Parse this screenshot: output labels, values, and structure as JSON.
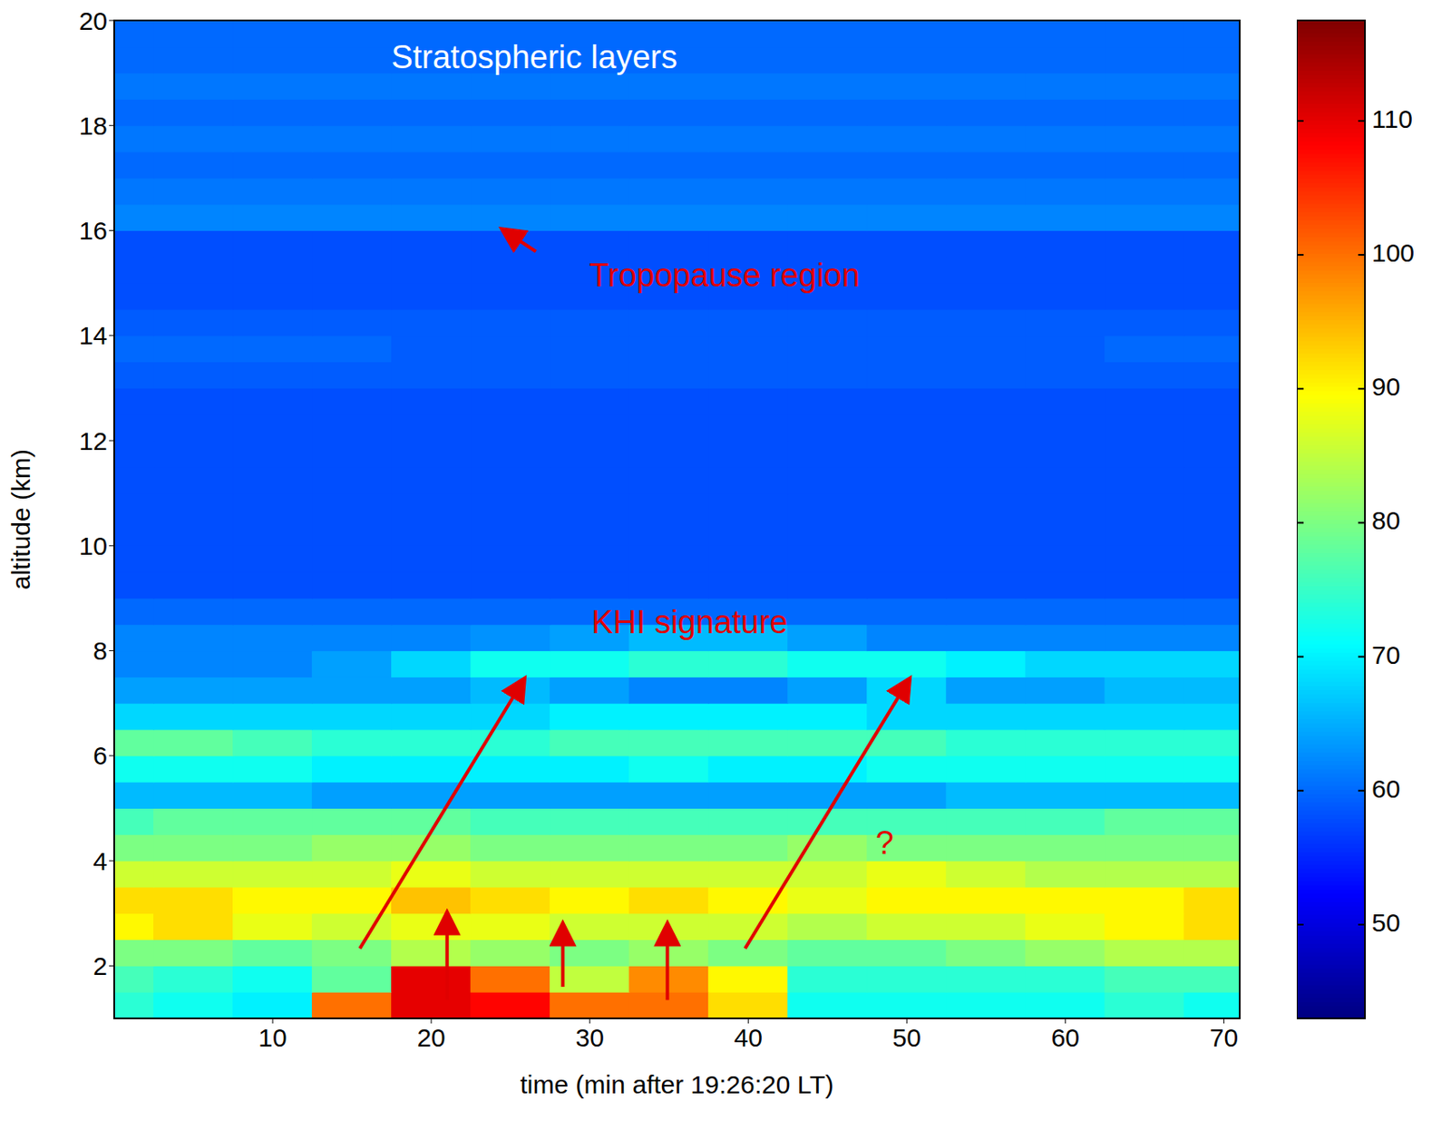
{
  "chart_data": {
    "type": "heatmap",
    "x_label": "time (min after 19:26:20 LT)",
    "y_label": "altitude (km)",
    "xlim": [
      0,
      71
    ],
    "xticks": [
      10,
      20,
      30,
      40,
      50,
      60,
      70
    ],
    "ylim": [
      1,
      20
    ],
    "yticks": [
      2,
      4,
      6,
      8,
      10,
      12,
      14,
      16,
      18,
      20
    ],
    "x": [
      0,
      5,
      10,
      15,
      20,
      25,
      30,
      35,
      40,
      45,
      50,
      55,
      60,
      65,
      70
    ],
    "y": [
      1.25,
      1.75,
      2.25,
      2.75,
      3.25,
      3.75,
      4.25,
      4.75,
      5.25,
      5.75,
      6.25,
      6.75,
      7.25,
      7.75,
      8.25,
      8.75,
      9.25,
      9.75,
      10.25,
      10.75,
      11.25,
      11.75,
      12.25,
      12.75,
      13.25,
      13.75,
      14.25,
      14.75,
      15.25,
      15.75,
      16.25,
      16.75,
      17.25,
      17.75,
      18.25,
      18.75,
      19.25,
      19.75
    ],
    "cells": [
      [
        74,
        72,
        70,
        100,
        110,
        108,
        100,
        100,
        92,
        72,
        72,
        72,
        72,
        74,
        72
      ],
      [
        76,
        74,
        72,
        78,
        110,
        100,
        85,
        98,
        90,
        74,
        74,
        74,
        74,
        76,
        76
      ],
      [
        80,
        80,
        78,
        80,
        84,
        82,
        80,
        82,
        80,
        78,
        78,
        80,
        82,
        84,
        84
      ],
      [
        90,
        92,
        88,
        86,
        88,
        88,
        86,
        86,
        86,
        84,
        86,
        86,
        88,
        90,
        92
      ],
      [
        92,
        92,
        90,
        90,
        94,
        92,
        90,
        92,
        90,
        88,
        90,
        90,
        90,
        90,
        92
      ],
      [
        86,
        86,
        86,
        86,
        88,
        86,
        86,
        86,
        86,
        86,
        88,
        86,
        84,
        84,
        84
      ],
      [
        80,
        80,
        80,
        82,
        82,
        80,
        80,
        80,
        80,
        82,
        80,
        80,
        80,
        80,
        80
      ],
      [
        76,
        78,
        78,
        78,
        78,
        76,
        76,
        76,
        76,
        76,
        76,
        76,
        76,
        78,
        78
      ],
      [
        66,
        66,
        66,
        64,
        64,
        64,
        64,
        64,
        64,
        64,
        64,
        66,
        66,
        66,
        66
      ],
      [
        72,
        72,
        72,
        70,
        70,
        70,
        70,
        72,
        70,
        70,
        72,
        72,
        72,
        72,
        72
      ],
      [
        78,
        78,
        76,
        74,
        74,
        74,
        76,
        76,
        76,
        76,
        76,
        74,
        74,
        74,
        74
      ],
      [
        68,
        68,
        68,
        68,
        68,
        68,
        70,
        70,
        70,
        70,
        68,
        68,
        68,
        68,
        68
      ],
      [
        64,
        64,
        64,
        64,
        64,
        66,
        64,
        62,
        62,
        64,
        68,
        64,
        64,
        66,
        66
      ],
      [
        62,
        62,
        62,
        64,
        68,
        72,
        72,
        74,
        74,
        72,
        72,
        70,
        68,
        68,
        68
      ],
      [
        62,
        62,
        62,
        62,
        62,
        63,
        64,
        66,
        66,
        64,
        62,
        62,
        62,
        62,
        62
      ],
      [
        60,
        60,
        60,
        60,
        60,
        60,
        60,
        60,
        60,
        60,
        60,
        60,
        60,
        60,
        60
      ],
      [
        58,
        58,
        58,
        58,
        58,
        58,
        58,
        58,
        58,
        58,
        58,
        58,
        58,
        58,
        58
      ],
      [
        58,
        58,
        58,
        58,
        58,
        58,
        58,
        58,
        58,
        58,
        58,
        58,
        58,
        58,
        58
      ],
      [
        58,
        58,
        58,
        58,
        58,
        58,
        58,
        58,
        58,
        58,
        58,
        58,
        58,
        58,
        58
      ],
      [
        58,
        58,
        58,
        58,
        58,
        58,
        58,
        58,
        58,
        58,
        58,
        58,
        58,
        58,
        58
      ],
      [
        58,
        58,
        58,
        58,
        58,
        58,
        58,
        58,
        58,
        58,
        58,
        58,
        58,
        58,
        58
      ],
      [
        58,
        58,
        58,
        58,
        58,
        58,
        58,
        58,
        58,
        58,
        58,
        58,
        58,
        58,
        58
      ],
      [
        58,
        58,
        58,
        58,
        58,
        58,
        58,
        58,
        58,
        58,
        58,
        58,
        58,
        58,
        58
      ],
      [
        58,
        58,
        58,
        58,
        58,
        58,
        58,
        58,
        58,
        58,
        58,
        58,
        58,
        58,
        58
      ],
      [
        59,
        59,
        59,
        59,
        59,
        59,
        59,
        59,
        59,
        59,
        59,
        59,
        59,
        59,
        59
      ],
      [
        60,
        60,
        60,
        60,
        59,
        59,
        59,
        59,
        59,
        59,
        59,
        59,
        59,
        60,
        60
      ],
      [
        59,
        59,
        59,
        59,
        59,
        59,
        59,
        59,
        59,
        59,
        59,
        59,
        59,
        59,
        59
      ],
      [
        58,
        58,
        58,
        58,
        58,
        58,
        58,
        58,
        58,
        58,
        58,
        58,
        58,
        58,
        58
      ],
      [
        58,
        58,
        58,
        58,
        58,
        58,
        58,
        58,
        58,
        58,
        58,
        58,
        58,
        58,
        58
      ],
      [
        58,
        58,
        58,
        58,
        58,
        58,
        58,
        58,
        58,
        58,
        58,
        58,
        58,
        58,
        58
      ],
      [
        62,
        62,
        62,
        62,
        62,
        62,
        62,
        62,
        62,
        62,
        62,
        62,
        62,
        62,
        62
      ],
      [
        61,
        61,
        61,
        61,
        61,
        61,
        61,
        61,
        61,
        61,
        61,
        61,
        61,
        61,
        61
      ],
      [
        60,
        60,
        60,
        60,
        60,
        60,
        60,
        60,
        60,
        60,
        60,
        60,
        60,
        60,
        60
      ],
      [
        61,
        61,
        61,
        61,
        61,
        61,
        61,
        61,
        61,
        61,
        61,
        61,
        61,
        61,
        61
      ],
      [
        60,
        60,
        60,
        60,
        60,
        60,
        60,
        60,
        60,
        60,
        60,
        60,
        60,
        60,
        60
      ],
      [
        61,
        61,
        61,
        61,
        61,
        61,
        61,
        61,
        61,
        61,
        61,
        61,
        61,
        61,
        61
      ],
      [
        60,
        60,
        60,
        60,
        60,
        60,
        60,
        60,
        60,
        60,
        60,
        60,
        60,
        60,
        60
      ],
      [
        60,
        60,
        60,
        60,
        60,
        60,
        60,
        60,
        60,
        60,
        60,
        60,
        60,
        60,
        60
      ]
    ],
    "colorbar": {
      "lim": [
        43,
        117.5
      ],
      "ticks": [
        50,
        60,
        70,
        80,
        90,
        100,
        110
      ]
    },
    "annotations": [
      {
        "text": "Stratospheric layers"
      },
      {
        "text": "Tropopause region"
      },
      {
        "text": "KHI signature"
      },
      {
        "text": "?"
      }
    ]
  }
}
